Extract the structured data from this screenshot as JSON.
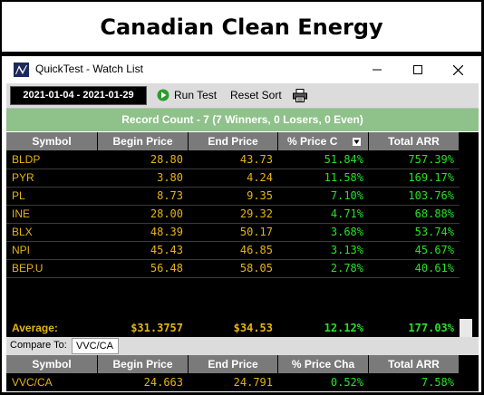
{
  "page_title": "Canadian Clean Energy",
  "window": {
    "title": "QuickTest - Watch List",
    "minimize_icon": "minimize-icon",
    "maximize_icon": "maximize-icon",
    "close_icon": "close-icon"
  },
  "toolbar": {
    "date_range": "2021-01-04 - 2021-01-29",
    "run_test_label": "Run Test",
    "reset_sort_label": "Reset Sort",
    "print_icon": "printer-icon",
    "run_icon": "play-icon"
  },
  "record_bar": "Record Count - 7 (7 Winners, 0 Losers, 0 Even)",
  "table": {
    "columns": [
      "Symbol",
      "Begin Price",
      "End Price",
      "% Price C",
      "Total ARR"
    ],
    "rows": [
      {
        "symbol": "BLDP",
        "begin": "28.80",
        "end": "43.73",
        "pct": "51.84%",
        "arr": "757.39%"
      },
      {
        "symbol": "PYR",
        "begin": "3.80",
        "end": "4.24",
        "pct": "11.58%",
        "arr": "169.17%"
      },
      {
        "symbol": "PL",
        "begin": "8.73",
        "end": "9.35",
        "pct": "7.10%",
        "arr": "103.76%"
      },
      {
        "symbol": "INE",
        "begin": "28.00",
        "end": "29.32",
        "pct": "4.71%",
        "arr": "68.88%"
      },
      {
        "symbol": "BLX",
        "begin": "48.39",
        "end": "50.17",
        "pct": "3.68%",
        "arr": "53.74%"
      },
      {
        "symbol": "NPI",
        "begin": "45.43",
        "end": "46.85",
        "pct": "3.13%",
        "arr": "45.67%"
      },
      {
        "symbol": "BEP.U",
        "begin": "56.48",
        "end": "58.05",
        "pct": "2.78%",
        "arr": "40.61%"
      }
    ],
    "sort_icon": "sort-desc-icon"
  },
  "average": {
    "label": "Average:",
    "begin": "$31.3757",
    "end": "$34.53",
    "pct": "12.12%",
    "arr": "177.03%"
  },
  "compare": {
    "label": "Compare To:",
    "value": "VVC/CA",
    "columns": [
      "Symbol",
      "Begin Price",
      "End Price",
      "% Price Cha",
      "Total ARR"
    ],
    "row": {
      "symbol": "VVC/CA",
      "begin": "24.663",
      "end": "24.791",
      "pct": "0.52%",
      "arr": "7.58%"
    }
  },
  "colors": {
    "yellow": "#e6b413",
    "green": "#28e028",
    "header_gray": "#7a7a7a",
    "record_green": "#8fc18a"
  }
}
